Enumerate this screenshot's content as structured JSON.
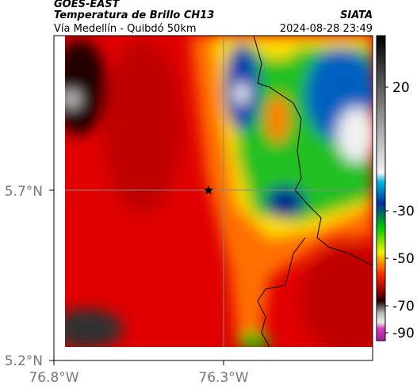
{
  "header": {
    "agency": "GOES-EAST",
    "title": "Temperatura de Brillo CH13",
    "subtitle": "Vía Medellín - Quibdó 50km",
    "source": "SIATA",
    "datetime": "2024-08-28 23:49"
  },
  "map": {
    "lat_labels": [
      "5.7°N",
      "5.2°N"
    ],
    "lon_labels": [
      "76.8°W",
      "76.3°W"
    ]
  },
  "colorbar": {
    "tick_labels": [
      "20",
      "-30",
      "-50",
      "-70",
      "-90"
    ]
  }
}
